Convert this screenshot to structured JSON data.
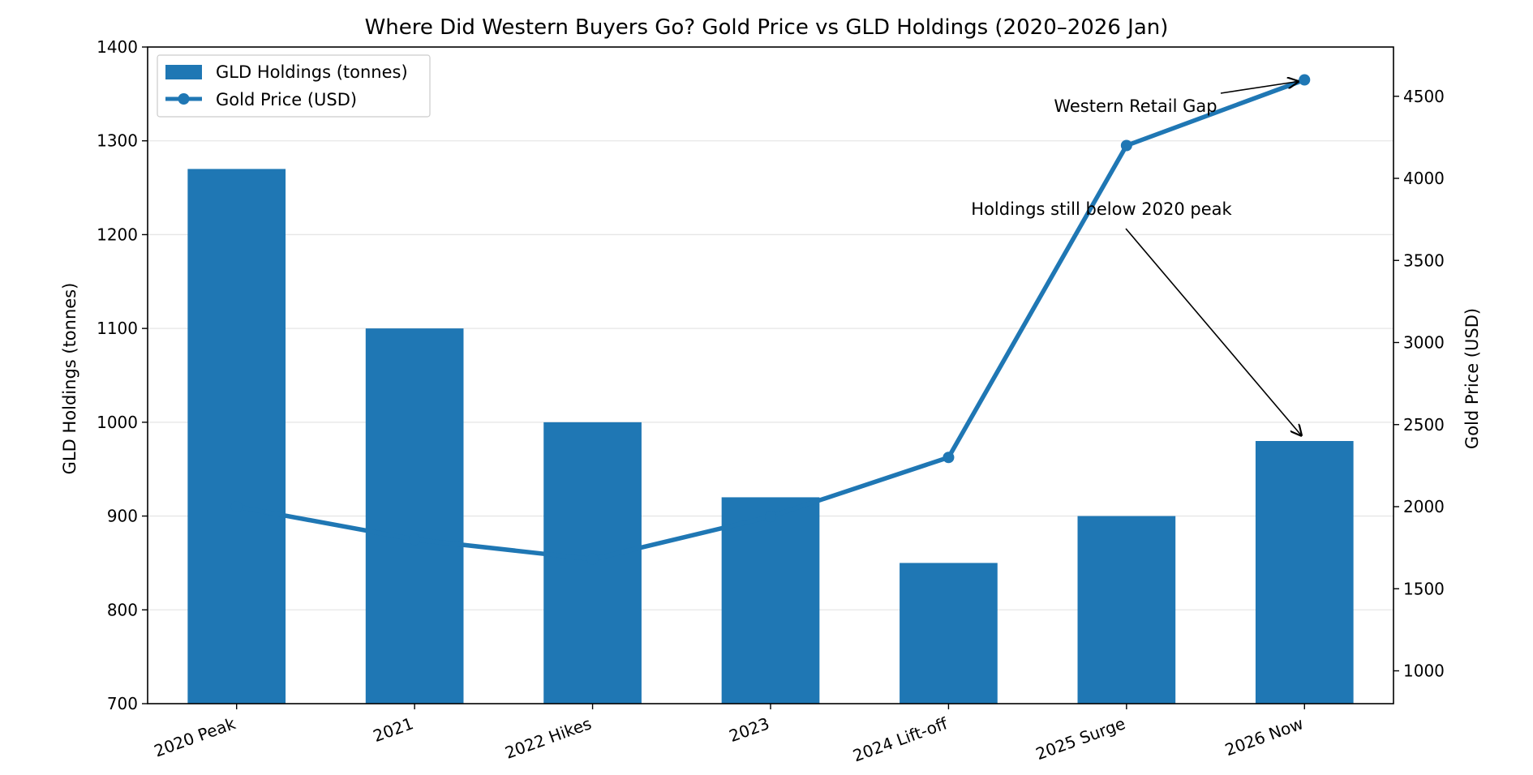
{
  "chart_data": {
    "type": "bar+line",
    "title": "Where Did Western Buyers Go? Gold Price vs GLD Holdings (2020–2026 Jan)",
    "categories": [
      "2020 Peak",
      "2021",
      "2022 Hikes",
      "2023",
      "2024 Lift-off",
      "2025 Surge",
      "2026 Now"
    ],
    "series": [
      {
        "name": "GLD Holdings (tonnes)",
        "kind": "bar",
        "axis": "left",
        "values": [
          1270,
          1100,
          1000,
          920,
          850,
          900,
          980
        ]
      },
      {
        "name": "Gold Price (USD)",
        "kind": "line",
        "axis": "right",
        "values": [
          2000,
          1800,
          1680,
          1940,
          2300,
          4200,
          4600
        ]
      }
    ],
    "ylabel_left": "GLD Holdings (tonnes)",
    "ylabel_right": "Gold Price (USD)",
    "ylim_left": [
      700,
      1400
    ],
    "ylim_right": [
      800,
      4800
    ],
    "yticks_left": [
      700,
      800,
      900,
      1000,
      1100,
      1200,
      1300,
      1400
    ],
    "yticks_right": [
      1000,
      1500,
      2000,
      2500,
      3000,
      3500,
      4000,
      4500
    ],
    "grid": "horizontal",
    "legend": "top-left",
    "color": "#1f77b4",
    "annotations": [
      {
        "text": "Western Retail Gap",
        "target_category": "2026 Now",
        "target_axis": "right",
        "target_value": 4600
      },
      {
        "text": "Holdings still below 2020 peak",
        "target_category": "2026 Now",
        "target_axis": "left",
        "target_value": 980
      }
    ]
  }
}
